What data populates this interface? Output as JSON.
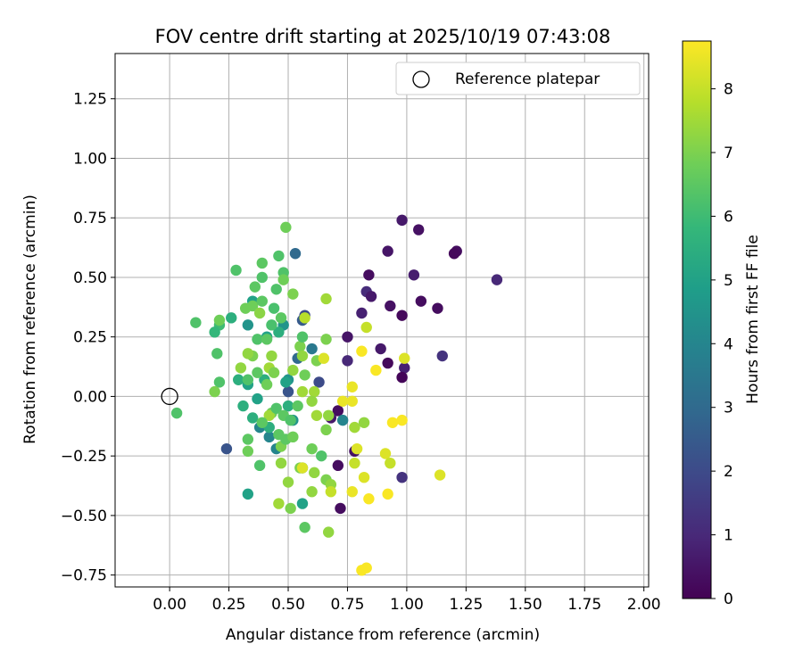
{
  "chart_data": {
    "type": "scatter",
    "title": "FOV centre drift starting at 2025/10/19 07:43:08",
    "xlabel": "Angular distance from reference (arcmin)",
    "ylabel": "Rotation from reference (arcmin)",
    "xlim": [
      -0.23,
      2.02
    ],
    "ylim": [
      -0.8,
      1.44
    ],
    "x_ticks": [
      0.0,
      0.25,
      0.5,
      0.75,
      1.0,
      1.25,
      1.5,
      1.75,
      2.0
    ],
    "x_tick_labels": [
      "0.00",
      "0.25",
      "0.50",
      "0.75",
      "1.00",
      "1.25",
      "1.50",
      "1.75",
      "2.00"
    ],
    "y_ticks": [
      -0.75,
      -0.5,
      -0.25,
      0.0,
      0.25,
      0.5,
      0.75,
      1.0,
      1.25
    ],
    "y_tick_labels": [
      "−0.75",
      "−0.50",
      "−0.25",
      "0.00",
      "0.25",
      "0.50",
      "0.75",
      "1.00",
      "1.25"
    ],
    "grid": true,
    "legend": {
      "position": "top-right",
      "entries": [
        {
          "label": "Reference platepar",
          "marker": "open-circle"
        }
      ]
    },
    "reference_point": {
      "x": 0.0,
      "y": 0.0
    },
    "colorbar": {
      "label": "Hours from first FF file",
      "range": [
        0,
        8.75
      ],
      "ticks": [
        0,
        1,
        2,
        3,
        4,
        5,
        6,
        7,
        8
      ],
      "tick_labels": [
        "0",
        "1",
        "2",
        "3",
        "4",
        "5",
        "6",
        "7",
        "8"
      ],
      "colormap": "viridis",
      "colors": [
        "#440154",
        "#482878",
        "#3e4989",
        "#31688e",
        "#26828e",
        "#1f9e89",
        "#35b779",
        "#6ece58",
        "#b5de2b",
        "#fde725"
      ]
    },
    "points": [
      {
        "x": 0.98,
        "y": 0.74,
        "c": 0.6
      },
      {
        "x": 1.05,
        "y": 0.7,
        "c": 0.4
      },
      {
        "x": 1.21,
        "y": 0.61,
        "c": 0.3
      },
      {
        "x": 1.2,
        "y": 0.6,
        "c": 0.2
      },
      {
        "x": 0.92,
        "y": 0.61,
        "c": 0.5
      },
      {
        "x": 1.03,
        "y": 0.51,
        "c": 0.7
      },
      {
        "x": 0.84,
        "y": 0.51,
        "c": 0.3
      },
      {
        "x": 1.38,
        "y": 0.49,
        "c": 1.0
      },
      {
        "x": 0.83,
        "y": 0.44,
        "c": 1.1
      },
      {
        "x": 0.85,
        "y": 0.42,
        "c": 0.6
      },
      {
        "x": 1.06,
        "y": 0.4,
        "c": 0.3
      },
      {
        "x": 0.93,
        "y": 0.38,
        "c": 0.4
      },
      {
        "x": 1.13,
        "y": 0.37,
        "c": 0.3
      },
      {
        "x": 0.81,
        "y": 0.35,
        "c": 0.8
      },
      {
        "x": 0.98,
        "y": 0.34,
        "c": 0.2
      },
      {
        "x": 0.75,
        "y": 0.25,
        "c": 0.5
      },
      {
        "x": 0.89,
        "y": 0.2,
        "c": 0.6
      },
      {
        "x": 1.15,
        "y": 0.17,
        "c": 1.3
      },
      {
        "x": 0.75,
        "y": 0.15,
        "c": 1.0
      },
      {
        "x": 0.92,
        "y": 0.14,
        "c": 0.2
      },
      {
        "x": 0.99,
        "y": 0.12,
        "c": 0.8
      },
      {
        "x": 0.98,
        "y": 0.08,
        "c": 0.1
      },
      {
        "x": 0.71,
        "y": -0.06,
        "c": 0.3
      },
      {
        "x": 0.68,
        "y": -0.09,
        "c": 0.6
      },
      {
        "x": 0.78,
        "y": -0.23,
        "c": 0.4
      },
      {
        "x": 0.71,
        "y": -0.29,
        "c": 0.3
      },
      {
        "x": 0.98,
        "y": -0.34,
        "c": 1.3
      },
      {
        "x": 0.72,
        "y": -0.47,
        "c": 0.3
      },
      {
        "x": 0.53,
        "y": 0.6,
        "c": 3.0
      },
      {
        "x": 0.57,
        "y": 0.34,
        "c": 2.0
      },
      {
        "x": 0.56,
        "y": 0.32,
        "c": 2.5
      },
      {
        "x": 0.24,
        "y": -0.22,
        "c": 2.3
      },
      {
        "x": 0.5,
        "y": 0.02,
        "c": 2.3
      },
      {
        "x": 0.63,
        "y": 0.06,
        "c": 2.0
      },
      {
        "x": 0.6,
        "y": 0.2,
        "c": 3.5
      },
      {
        "x": 0.54,
        "y": 0.16,
        "c": 3.0
      },
      {
        "x": 0.73,
        "y": -0.1,
        "c": 4.0
      },
      {
        "x": 0.56,
        "y": -0.3,
        "c": 4.5
      },
      {
        "x": 0.48,
        "y": 0.3,
        "c": 4.5
      },
      {
        "x": 0.33,
        "y": 0.3,
        "c": 4.5
      },
      {
        "x": 0.38,
        "y": -0.13,
        "c": 4.0
      },
      {
        "x": 0.42,
        "y": -0.17,
        "c": 4.0
      },
      {
        "x": 0.45,
        "y": -0.22,
        "c": 4.0
      },
      {
        "x": 0.52,
        "y": -0.1,
        "c": 4.5
      },
      {
        "x": 0.5,
        "y": 0.07,
        "c": 4.5
      },
      {
        "x": 0.35,
        "y": 0.4,
        "c": 5.0
      },
      {
        "x": 0.41,
        "y": 0.25,
        "c": 5.0
      },
      {
        "x": 0.46,
        "y": 0.27,
        "c": 5.5
      },
      {
        "x": 0.4,
        "y": 0.07,
        "c": 5.5
      },
      {
        "x": 0.33,
        "y": 0.05,
        "c": 5.0
      },
      {
        "x": 0.37,
        "y": -0.01,
        "c": 5.0
      },
      {
        "x": 0.29,
        "y": 0.07,
        "c": 5.5
      },
      {
        "x": 0.31,
        "y": -0.04,
        "c": 5.5
      },
      {
        "x": 0.35,
        "y": -0.09,
        "c": 5.5
      },
      {
        "x": 0.42,
        "y": -0.13,
        "c": 5.5
      },
      {
        "x": 0.5,
        "y": -0.04,
        "c": 5.5
      },
      {
        "x": 0.49,
        "y": 0.06,
        "c": 5.0
      },
      {
        "x": 0.33,
        "y": -0.41,
        "c": 5.0
      },
      {
        "x": 0.56,
        "y": -0.45,
        "c": 5.0
      },
      {
        "x": 0.21,
        "y": 0.3,
        "c": 6.0
      },
      {
        "x": 0.26,
        "y": 0.33,
        "c": 5.5
      },
      {
        "x": 0.19,
        "y": 0.27,
        "c": 5.8
      },
      {
        "x": 0.28,
        "y": 0.53,
        "c": 6.3
      },
      {
        "x": 0.39,
        "y": 0.56,
        "c": 6.5
      },
      {
        "x": 0.39,
        "y": 0.5,
        "c": 6.3
      },
      {
        "x": 0.46,
        "y": 0.59,
        "c": 6.3
      },
      {
        "x": 0.49,
        "y": 0.71,
        "c": 6.8
      },
      {
        "x": 0.48,
        "y": 0.52,
        "c": 6.3
      },
      {
        "x": 0.48,
        "y": 0.49,
        "c": 6.8
      },
      {
        "x": 0.45,
        "y": 0.45,
        "c": 6.3
      },
      {
        "x": 0.36,
        "y": 0.46,
        "c": 6.5
      },
      {
        "x": 0.52,
        "y": 0.43,
        "c": 7.0
      },
      {
        "x": 0.35,
        "y": 0.38,
        "c": 6.8
      },
      {
        "x": 0.39,
        "y": 0.4,
        "c": 6.5
      },
      {
        "x": 0.44,
        "y": 0.37,
        "c": 6.2
      },
      {
        "x": 0.38,
        "y": 0.35,
        "c": 7.2
      },
      {
        "x": 0.47,
        "y": 0.33,
        "c": 6.5
      },
      {
        "x": 0.43,
        "y": 0.3,
        "c": 6.2
      },
      {
        "x": 0.11,
        "y": 0.31,
        "c": 6.3
      },
      {
        "x": 0.21,
        "y": 0.32,
        "c": 6.8
      },
      {
        "x": 0.2,
        "y": 0.18,
        "c": 6.3
      },
      {
        "x": 0.21,
        "y": 0.06,
        "c": 6.3
      },
      {
        "x": 0.19,
        "y": 0.02,
        "c": 7.0
      },
      {
        "x": 0.03,
        "y": -0.07,
        "c": 6.3
      },
      {
        "x": 0.32,
        "y": 0.37,
        "c": 6.8
      },
      {
        "x": 0.37,
        "y": 0.24,
        "c": 6.3
      },
      {
        "x": 0.41,
        "y": 0.24,
        "c": 6.5
      },
      {
        "x": 0.43,
        "y": 0.17,
        "c": 7.3
      },
      {
        "x": 0.35,
        "y": 0.17,
        "c": 7.0
      },
      {
        "x": 0.33,
        "y": 0.18,
        "c": 7.3
      },
      {
        "x": 0.3,
        "y": 0.12,
        "c": 7.3
      },
      {
        "x": 0.37,
        "y": 0.1,
        "c": 6.5
      },
      {
        "x": 0.42,
        "y": 0.12,
        "c": 7.5
      },
      {
        "x": 0.44,
        "y": 0.1,
        "c": 7.0
      },
      {
        "x": 0.41,
        "y": 0.05,
        "c": 6.8
      },
      {
        "x": 0.33,
        "y": 0.07,
        "c": 6.3
      },
      {
        "x": 0.43,
        "y": -0.07,
        "c": 6.8
      },
      {
        "x": 0.42,
        "y": -0.08,
        "c": 7.5
      },
      {
        "x": 0.45,
        "y": -0.05,
        "c": 6.3
      },
      {
        "x": 0.39,
        "y": -0.11,
        "c": 6.5
      },
      {
        "x": 0.48,
        "y": -0.08,
        "c": 6.5
      },
      {
        "x": 0.51,
        "y": -0.1,
        "c": 6.3
      },
      {
        "x": 0.54,
        "y": -0.04,
        "c": 6.5
      },
      {
        "x": 0.52,
        "y": 0.11,
        "c": 7.3
      },
      {
        "x": 0.56,
        "y": 0.02,
        "c": 7.5
      },
      {
        "x": 0.61,
        "y": 0.02,
        "c": 7.5
      },
      {
        "x": 0.6,
        "y": -0.02,
        "c": 7.3
      },
      {
        "x": 0.57,
        "y": 0.09,
        "c": 6.8
      },
      {
        "x": 0.55,
        "y": 0.21,
        "c": 7.0
      },
      {
        "x": 0.56,
        "y": 0.25,
        "c": 6.3
      },
      {
        "x": 0.56,
        "y": 0.17,
        "c": 7.3
      },
      {
        "x": 0.62,
        "y": 0.15,
        "c": 7.0
      },
      {
        "x": 0.65,
        "y": 0.16,
        "c": 8.3
      },
      {
        "x": 0.66,
        "y": 0.24,
        "c": 7.0
      },
      {
        "x": 0.66,
        "y": 0.41,
        "c": 7.5
      },
      {
        "x": 0.57,
        "y": 0.33,
        "c": 7.8
      },
      {
        "x": 0.62,
        "y": -0.08,
        "c": 7.5
      },
      {
        "x": 0.67,
        "y": -0.08,
        "c": 7.3
      },
      {
        "x": 0.66,
        "y": -0.14,
        "c": 7.0
      },
      {
        "x": 0.6,
        "y": -0.22,
        "c": 6.8
      },
      {
        "x": 0.64,
        "y": -0.25,
        "c": 6.3
      },
      {
        "x": 0.55,
        "y": -0.3,
        "c": 7.0
      },
      {
        "x": 0.56,
        "y": -0.3,
        "c": 8.3
      },
      {
        "x": 0.61,
        "y": -0.32,
        "c": 7.3
      },
      {
        "x": 0.66,
        "y": -0.35,
        "c": 7.0
      },
      {
        "x": 0.68,
        "y": -0.37,
        "c": 7.3
      },
      {
        "x": 0.68,
        "y": -0.4,
        "c": 8.0
      },
      {
        "x": 0.5,
        "y": -0.36,
        "c": 7.3
      },
      {
        "x": 0.46,
        "y": -0.45,
        "c": 7.5
      },
      {
        "x": 0.51,
        "y": -0.47,
        "c": 7.0
      },
      {
        "x": 0.6,
        "y": -0.4,
        "c": 7.3
      },
      {
        "x": 0.57,
        "y": -0.55,
        "c": 6.5
      },
      {
        "x": 0.67,
        "y": -0.57,
        "c": 7.3
      },
      {
        "x": 0.33,
        "y": -0.18,
        "c": 6.5
      },
      {
        "x": 0.33,
        "y": -0.23,
        "c": 6.8
      },
      {
        "x": 0.38,
        "y": -0.29,
        "c": 6.3
      },
      {
        "x": 0.46,
        "y": -0.16,
        "c": 6.5
      },
      {
        "x": 0.47,
        "y": -0.21,
        "c": 7.0
      },
      {
        "x": 0.49,
        "y": -0.18,
        "c": 6.5
      },
      {
        "x": 0.52,
        "y": -0.17,
        "c": 6.8
      },
      {
        "x": 0.47,
        "y": -0.28,
        "c": 7.3
      },
      {
        "x": 0.77,
        "y": 0.04,
        "c": 8.5
      },
      {
        "x": 0.73,
        "y": -0.02,
        "c": 8.5
      },
      {
        "x": 0.77,
        "y": -0.02,
        "c": 8.5
      },
      {
        "x": 0.81,
        "y": 0.19,
        "c": 8.7
      },
      {
        "x": 0.83,
        "y": 0.29,
        "c": 8.0
      },
      {
        "x": 0.87,
        "y": 0.11,
        "c": 8.7
      },
      {
        "x": 0.99,
        "y": 0.16,
        "c": 8.3
      },
      {
        "x": 0.78,
        "y": -0.13,
        "c": 7.5
      },
      {
        "x": 0.82,
        "y": -0.11,
        "c": 7.3
      },
      {
        "x": 0.79,
        "y": -0.22,
        "c": 8.3
      },
      {
        "x": 0.78,
        "y": -0.28,
        "c": 8.0
      },
      {
        "x": 0.77,
        "y": -0.4,
        "c": 8.5
      },
      {
        "x": 0.82,
        "y": -0.34,
        "c": 8.3
      },
      {
        "x": 0.84,
        "y": -0.43,
        "c": 8.7
      },
      {
        "x": 0.91,
        "y": -0.24,
        "c": 8.3
      },
      {
        "x": 0.93,
        "y": -0.28,
        "c": 8.0
      },
      {
        "x": 0.92,
        "y": -0.41,
        "c": 8.7
      },
      {
        "x": 0.94,
        "y": -0.11,
        "c": 8.7
      },
      {
        "x": 0.98,
        "y": -0.1,
        "c": 8.7
      },
      {
        "x": 1.14,
        "y": -0.33,
        "c": 8.3
      },
      {
        "x": 0.81,
        "y": -0.73,
        "c": 8.7
      },
      {
        "x": 0.83,
        "y": -0.72,
        "c": 8.7
      }
    ]
  }
}
